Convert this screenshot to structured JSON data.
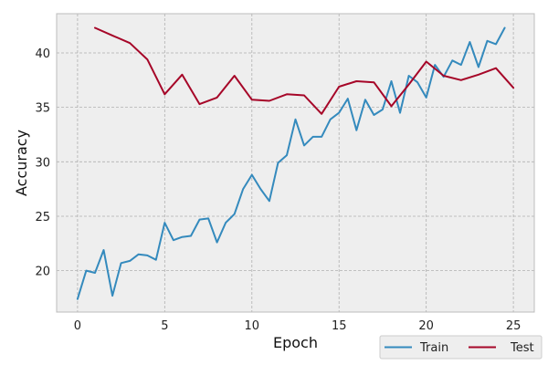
{
  "chart_data": {
    "type": "line",
    "title": "",
    "xlabel": "Epoch",
    "ylabel": "Accuracy",
    "xlim": [
      -1.2,
      26.2
    ],
    "ylim": [
      16.2,
      43.6
    ],
    "x_ticks": [
      0,
      5,
      10,
      15,
      20,
      25
    ],
    "y_ticks": [
      20,
      25,
      30,
      35,
      40
    ],
    "grid": true,
    "legend_position": "bottom-right",
    "series": [
      {
        "name": "Train",
        "color": "#348ABD",
        "x": [
          0,
          0.5,
          1,
          1.5,
          2,
          2.5,
          3,
          3.5,
          4,
          4.5,
          5,
          5.5,
          6,
          6.5,
          7,
          7.5,
          8,
          8.5,
          9,
          9.5,
          10,
          10.5,
          11,
          11.5,
          12,
          12.5,
          13,
          13.5,
          14,
          14.5,
          15,
          15.5,
          16,
          16.5,
          17,
          17.5,
          18,
          18.5,
          19,
          19.5,
          20,
          20.5,
          21,
          21.5,
          22,
          22.5,
          23,
          23.5,
          24,
          24.5
        ],
        "y": [
          17.4,
          20.0,
          19.8,
          21.9,
          17.7,
          20.7,
          20.9,
          21.5,
          21.4,
          21.0,
          24.4,
          22.8,
          23.1,
          23.2,
          24.7,
          24.8,
          22.6,
          24.4,
          25.2,
          27.5,
          28.8,
          27.5,
          26.4,
          29.9,
          30.6,
          33.9,
          31.5,
          32.3,
          32.3,
          33.9,
          34.5,
          35.8,
          32.9,
          35.7,
          34.3,
          34.8,
          37.4,
          34.5,
          37.9,
          37.3,
          35.9,
          38.9,
          37.8,
          39.3,
          38.9,
          41.0,
          38.7,
          41.1,
          40.8,
          42.3
        ]
      },
      {
        "name": "Test",
        "color": "#A60628",
        "x": [
          1,
          2,
          3,
          4,
          5,
          6,
          7,
          8,
          9,
          10,
          11,
          12,
          13,
          14,
          15,
          16,
          17,
          18,
          19,
          20,
          21,
          22,
          23,
          24,
          25
        ],
        "y": [
          42.3,
          41.6,
          40.9,
          39.4,
          36.2,
          38.0,
          35.3,
          35.9,
          37.9,
          35.7,
          35.6,
          36.2,
          36.1,
          34.4,
          36.9,
          37.4,
          37.3,
          35.1,
          37.1,
          39.2,
          37.9,
          37.5,
          38.0,
          38.6,
          36.8
        ]
      }
    ]
  },
  "colors": {
    "plot_background": "#EEEEEE",
    "grid": "#B0B0B0",
    "axes_edge": "#BCBCBC"
  }
}
